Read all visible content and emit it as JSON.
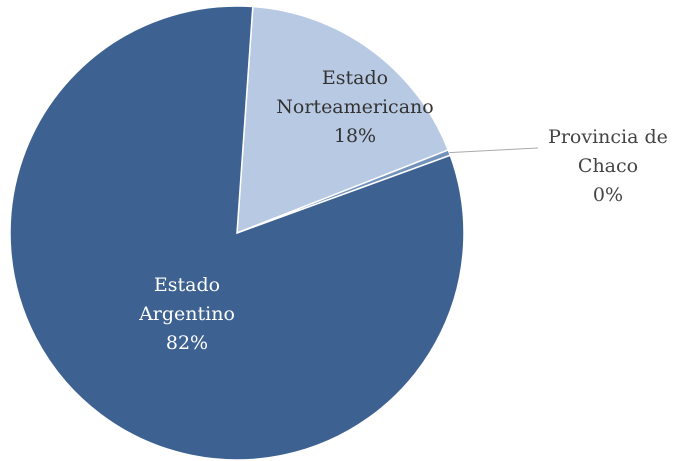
{
  "chart_data": {
    "type": "pie",
    "categories": [
      "Estado\nNorteamericano",
      "Provincia de\nChaco",
      "Estado\nArgentino"
    ],
    "values": [
      18,
      0.4,
      82
    ],
    "value_labels": [
      "18%",
      "0%",
      "82%"
    ],
    "colors": [
      "#b8cae3",
      "#7393bd",
      "#3d6191"
    ]
  }
}
